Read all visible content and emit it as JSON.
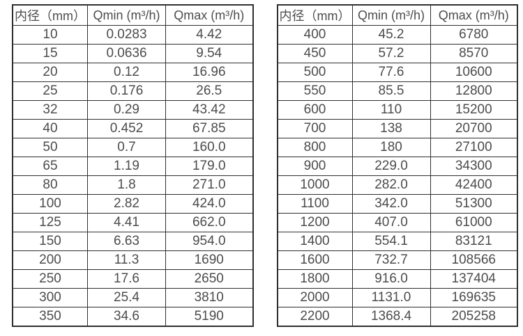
{
  "styles": {
    "background": "#ffffff",
    "border_color": "#2e2e2e",
    "text_color": "#4c4c4c"
  },
  "tables": [
    {
      "name": "flow-table-small-diameters",
      "headers": [
        "内径（mm）",
        "Qmin (m³/h)",
        "Qmax (m³/h)"
      ],
      "rows": [
        [
          "10",
          "0.0283",
          "4.42"
        ],
        [
          "15",
          "0.0636",
          "9.54"
        ],
        [
          "20",
          "0.12",
          "16.96"
        ],
        [
          "25",
          "0.176",
          "26.5"
        ],
        [
          "32",
          "0.29",
          "43.42"
        ],
        [
          "40",
          "0.452",
          "67.85"
        ],
        [
          "50",
          "0.7",
          "160.0"
        ],
        [
          "65",
          "1.19",
          "179.0"
        ],
        [
          "80",
          "1.8",
          "271.0"
        ],
        [
          "100",
          "2.82",
          "424.0"
        ],
        [
          "125",
          "4.41",
          "662.0"
        ],
        [
          "150",
          "6.63",
          "954.0"
        ],
        [
          "200",
          "11.3",
          "1690"
        ],
        [
          "250",
          "17.6",
          "2650"
        ],
        [
          "300",
          "25.4",
          "3810"
        ],
        [
          "350",
          "34.6",
          "5190"
        ]
      ]
    },
    {
      "name": "flow-table-large-diameters",
      "headers": [
        "内径（mm）",
        "Qmin (m³/h)",
        "Qmax (m³/h)"
      ],
      "rows": [
        [
          "400",
          "45.2",
          "6780"
        ],
        [
          "450",
          "57.2",
          "8570"
        ],
        [
          "500",
          "77.6",
          "10600"
        ],
        [
          "550",
          "85.5",
          "12800"
        ],
        [
          "600",
          "110",
          "15200"
        ],
        [
          "700",
          "138",
          "20700"
        ],
        [
          "800",
          "180",
          "27100"
        ],
        [
          "900",
          "229.0",
          "34300"
        ],
        [
          "1000",
          "282.0",
          "42400"
        ],
        [
          "1100",
          "342.0",
          "51300"
        ],
        [
          "1200",
          "407.0",
          "61000"
        ],
        [
          "1400",
          "554.1",
          "83121"
        ],
        [
          "1600",
          "732.7",
          "108566"
        ],
        [
          "1800",
          "916.0",
          "137404"
        ],
        [
          "2000",
          "1131.0",
          "169635"
        ],
        [
          "2200",
          "1368.4",
          "205258"
        ]
      ]
    }
  ]
}
